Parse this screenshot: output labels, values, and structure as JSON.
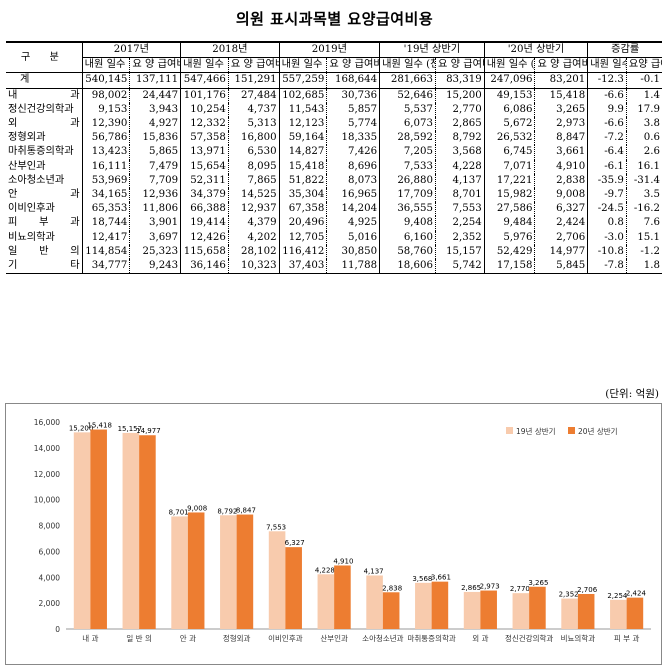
{
  "title": "의원 표시과목별 요양급여비용",
  "table": {
    "header_label": "구 분",
    "years": [
      "2017년",
      "2018년",
      "2019년",
      "'19년 상반기",
      "'20년 상반기",
      "증감률"
    ],
    "sub_visits": "내원 일수 (천일)",
    "sub_cost": "요 양 급여비용 (억원)",
    "sub_rate_visits": "내원 일수 (%)",
    "sub_rate_cost": "요양 급여 비용 (%)",
    "rows": [
      {
        "name": "계",
        "v": [
          "540,145",
          "137,111",
          "547,466",
          "151,291",
          "557,259",
          "168,644",
          "281,663",
          "83,319",
          "247,096",
          "83,201",
          "-12.3",
          "-0.1"
        ]
      },
      {
        "name": "내 과",
        "v": [
          "98,002",
          "24,447",
          "101,176",
          "27,484",
          "102,685",
          "30,736",
          "52,646",
          "15,200",
          "49,153",
          "15,418",
          "-6.6",
          "1.4"
        ]
      },
      {
        "name": "정신건강의학과",
        "v": [
          "9,153",
          "3,943",
          "10,254",
          "4,737",
          "11,543",
          "5,857",
          "5,537",
          "2,770",
          "6,086",
          "3,265",
          "9.9",
          "17.9"
        ]
      },
      {
        "name": "외 과",
        "v": [
          "12,390",
          "4,927",
          "12,332",
          "5,313",
          "12,123",
          "5,774",
          "6,073",
          "2,865",
          "5,672",
          "2,973",
          "-6.6",
          "3.8"
        ]
      },
      {
        "name": "정형외과",
        "v": [
          "56,786",
          "15,836",
          "57,358",
          "16,800",
          "59,164",
          "18,335",
          "28,592",
          "8,792",
          "26,532",
          "8,847",
          "-7.2",
          "0.6"
        ]
      },
      {
        "name": "마취통증의학과",
        "v": [
          "13,423",
          "5,865",
          "13,971",
          "6,530",
          "14,827",
          "7,426",
          "7,205",
          "3,568",
          "6,745",
          "3,661",
          "-6.4",
          "2.6"
        ]
      },
      {
        "name": "산부인과",
        "v": [
          "16,111",
          "7,479",
          "15,654",
          "8,095",
          "15,418",
          "8,696",
          "7,533",
          "4,228",
          "7,071",
          "4,910",
          "-6.1",
          "16.1"
        ]
      },
      {
        "name": "소아청소년과",
        "v": [
          "53,969",
          "7,709",
          "52,311",
          "7,865",
          "51,822",
          "8,073",
          "26,880",
          "4,137",
          "17,221",
          "2,838",
          "-35.9",
          "-31.4"
        ]
      },
      {
        "name": "안 과",
        "v": [
          "34,165",
          "12,936",
          "34,379",
          "14,525",
          "35,304",
          "16,965",
          "17,709",
          "8,701",
          "15,982",
          "9,008",
          "-9.7",
          "3.5"
        ]
      },
      {
        "name": "이비인후과",
        "v": [
          "65,353",
          "11,806",
          "66,388",
          "12,937",
          "67,358",
          "14,204",
          "36,555",
          "7,553",
          "27,586",
          "6,327",
          "-24.5",
          "-16.2"
        ]
      },
      {
        "name": "피 부 과",
        "v": [
          "18,744",
          "3,901",
          "19,414",
          "4,379",
          "20,496",
          "4,925",
          "9,408",
          "2,254",
          "9,484",
          "2,424",
          "0.8",
          "7.6"
        ]
      },
      {
        "name": "비뇨의학과",
        "v": [
          "12,417",
          "3,697",
          "12,426",
          "4,202",
          "12,705",
          "5,016",
          "6,160",
          "2,352",
          "5,976",
          "2,706",
          "-3.0",
          "15.1"
        ]
      },
      {
        "name": "일 반 의",
        "v": [
          "114,854",
          "25,323",
          "115,658",
          "28,102",
          "116,412",
          "30,850",
          "58,760",
          "15,157",
          "52,429",
          "14,977",
          "-10.8",
          "-1.2"
        ]
      },
      {
        "name": "기 타",
        "v": [
          "34,777",
          "9,243",
          "36,146",
          "10,323",
          "37,403",
          "11,788",
          "18,606",
          "5,742",
          "17,158",
          "5,845",
          "-7.8",
          "1.8"
        ]
      }
    ]
  },
  "unit": "(단위: 억원)",
  "colors": {
    "series1": "#F8CBAD",
    "series2": "#ED7D31"
  },
  "chart_data": {
    "type": "bar",
    "ylim": [
      0,
      16000
    ],
    "yticks": [
      "0",
      "2,000",
      "4,000",
      "6,000",
      "8,000",
      "10,000",
      "12,000",
      "14,000",
      "16,000"
    ],
    "legend_position": "top-right",
    "grid": false,
    "categories": [
      "내 과",
      "일 반 의",
      "안 과",
      "정형외과",
      "이비인후과",
      "산부인과",
      "소아청소년과",
      "마취통증의학과",
      "외 과",
      "정신건강의학과",
      "비뇨의학과",
      "피 부 과"
    ],
    "series": [
      {
        "name": "19년 상반기",
        "values": [
          15200,
          15157,
          8701,
          8792,
          7553,
          4228,
          4137,
          3568,
          2865,
          2770,
          2352,
          2254
        ],
        "labels": [
          "15,200",
          "15,157",
          "8,701",
          "8,792",
          "7,553",
          "4,228",
          "4,137",
          "3,568",
          "2,865",
          "2,770",
          "2,352",
          "2,254"
        ]
      },
      {
        "name": "20년 상반기",
        "values": [
          15418,
          14977,
          9008,
          8847,
          6327,
          4910,
          2838,
          3661,
          2973,
          3265,
          2706,
          2424
        ],
        "labels": [
          "15,418",
          "14,977",
          "9,008",
          "8,847",
          "6,327",
          "4,910",
          "2,838",
          "3,661",
          "2,973",
          "3,265",
          "2,706",
          "2,424"
        ]
      }
    ]
  }
}
